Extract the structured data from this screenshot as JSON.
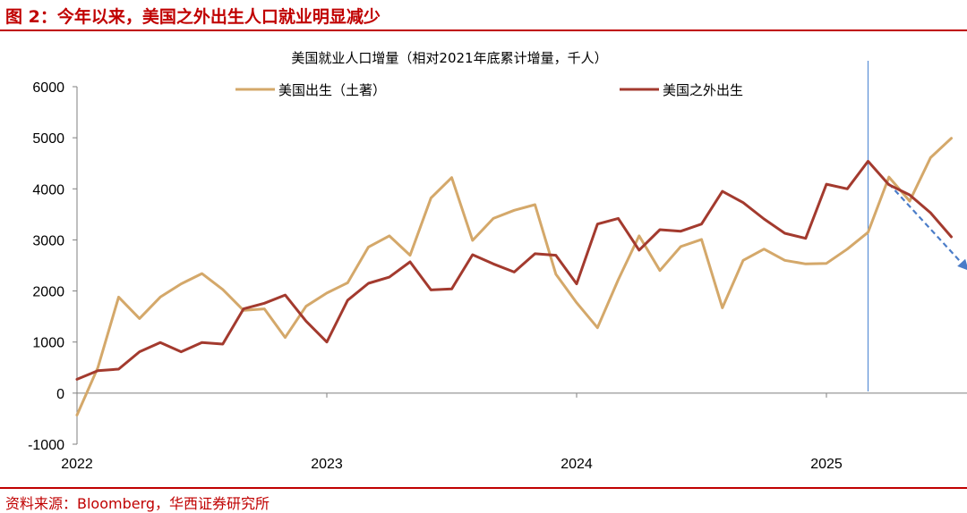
{
  "figure": {
    "title": "图 2：今年以来，美国之外出生人口就业明显减少",
    "source": "资料来源：Bloomberg，华西证券研究所"
  },
  "colors": {
    "accent": "#c00000",
    "native_line": "#d4a86a",
    "foreign_line": "#a33a2e",
    "marker_line": "#5b8fd6",
    "arrow": "#4a7cc8"
  },
  "chart_data": {
    "type": "line",
    "title": "美国就业人口增量（相对2021年底累计增量，千人）",
    "xlabel": "",
    "ylabel": "",
    "ylim": [
      -1000,
      6000
    ],
    "yticks": [
      "-1000",
      "0",
      "1000",
      "2000",
      "3000",
      "4000",
      "5000",
      "6000"
    ],
    "year_labels": [
      "2022",
      "2023",
      "2024",
      "2025"
    ],
    "grid": false,
    "legend": "top",
    "series": [
      {
        "name": "美国出生（土著）",
        "x": [
          "2022-01",
          "2022-02",
          "2022-03",
          "2022-04",
          "2022-05",
          "2022-06",
          "2022-07",
          "2022-08",
          "2022-09",
          "2022-10",
          "2022-11",
          "2022-12",
          "2023-01",
          "2023-02",
          "2023-03",
          "2023-04",
          "2023-05",
          "2023-06",
          "2023-07",
          "2023-08",
          "2023-09",
          "2023-10",
          "2023-11",
          "2023-12",
          "2024-01",
          "2024-02",
          "2024-03",
          "2024-04",
          "2024-05",
          "2024-06",
          "2024-07",
          "2024-08",
          "2024-09",
          "2024-10",
          "2024-11",
          "2024-12",
          "2025-01",
          "2025-02",
          "2025-03",
          "2025-04",
          "2025-05",
          "2025-06",
          "2025-07"
        ],
        "values": [
          -430,
          500,
          1880,
          1460,
          1880,
          2140,
          2340,
          2030,
          1620,
          1650,
          1090,
          1700,
          1960,
          2160,
          2860,
          3080,
          2700,
          3820,
          4220,
          2990,
          3420,
          3580,
          3690,
          2330,
          1770,
          1280,
          2220,
          3080,
          2400,
          2870,
          3010,
          1670,
          2600,
          2820,
          2600,
          2530,
          2540,
          2820,
          3150,
          4230,
          3760,
          4610,
          4990
        ]
      },
      {
        "name": "美国之外出生",
        "x": [
          "2022-01",
          "2022-02",
          "2022-03",
          "2022-04",
          "2022-05",
          "2022-06",
          "2022-07",
          "2022-08",
          "2022-09",
          "2022-10",
          "2022-11",
          "2022-12",
          "2023-01",
          "2023-02",
          "2023-03",
          "2023-04",
          "2023-05",
          "2023-06",
          "2023-07",
          "2023-08",
          "2023-09",
          "2023-10",
          "2023-11",
          "2023-12",
          "2024-01",
          "2024-02",
          "2024-03",
          "2024-04",
          "2024-05",
          "2024-06",
          "2024-07",
          "2024-08",
          "2024-09",
          "2024-10",
          "2024-11",
          "2024-12",
          "2025-01",
          "2025-02",
          "2025-03",
          "2025-04",
          "2025-05",
          "2025-06",
          "2025-07"
        ],
        "values": [
          270,
          440,
          470,
          810,
          990,
          810,
          990,
          960,
          1650,
          1760,
          1920,
          1410,
          1000,
          1820,
          2150,
          2270,
          2570,
          2020,
          2040,
          2710,
          2530,
          2370,
          2730,
          2700,
          2140,
          3310,
          3420,
          2800,
          3200,
          3170,
          3310,
          3950,
          3730,
          3410,
          3130,
          3030,
          4090,
          4000,
          4540,
          4080,
          3880,
          3530,
          3060
        ]
      }
    ],
    "annotations": {
      "marker_date": "2025-03",
      "arrow_from": {
        "x": "2025-04",
        "y": 4100
      },
      "arrow_to": {
        "x": "2025-08",
        "y": 2400
      }
    }
  }
}
